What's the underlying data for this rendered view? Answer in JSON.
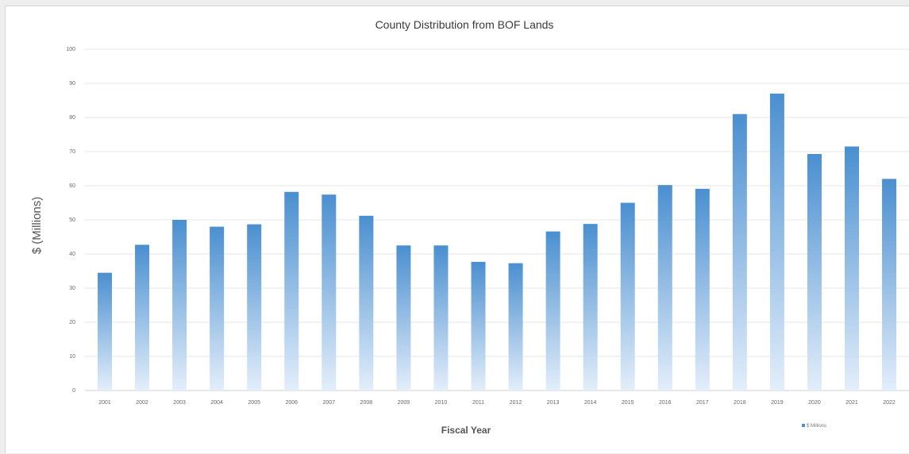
{
  "chart_data": {
    "type": "bar",
    "title": "County Distribution from BOF Lands",
    "xlabel": "Fiscal Year",
    "ylabel": "$ (Millions)",
    "ylim": [
      0,
      100
    ],
    "yticks": [
      0,
      10,
      20,
      30,
      40,
      50,
      60,
      70,
      80,
      90,
      100
    ],
    "categories": [
      "2001",
      "2002",
      "2003",
      "2004",
      "2005",
      "2006",
      "2007",
      "2008",
      "2009",
      "2010",
      "2011",
      "2012",
      "2013",
      "2014",
      "2015",
      "2016",
      "2017",
      "2018",
      "2019",
      "2020",
      "2021",
      "2022"
    ],
    "series": [
      {
        "name": "$ Millions",
        "values": [
          34.5,
          42.7,
          50.0,
          48.0,
          48.7,
          58.2,
          57.4,
          51.2,
          42.5,
          42.5,
          37.7,
          37.3,
          46.6,
          48.8,
          55.0,
          60.2,
          59.1,
          81.0,
          87.0,
          69.3,
          71.5,
          62.0
        ]
      }
    ],
    "grid": true,
    "legend": "bottom-right",
    "bar_color_top": "#4a8fd0",
    "bar_color_bottom": "#e3eefa"
  }
}
